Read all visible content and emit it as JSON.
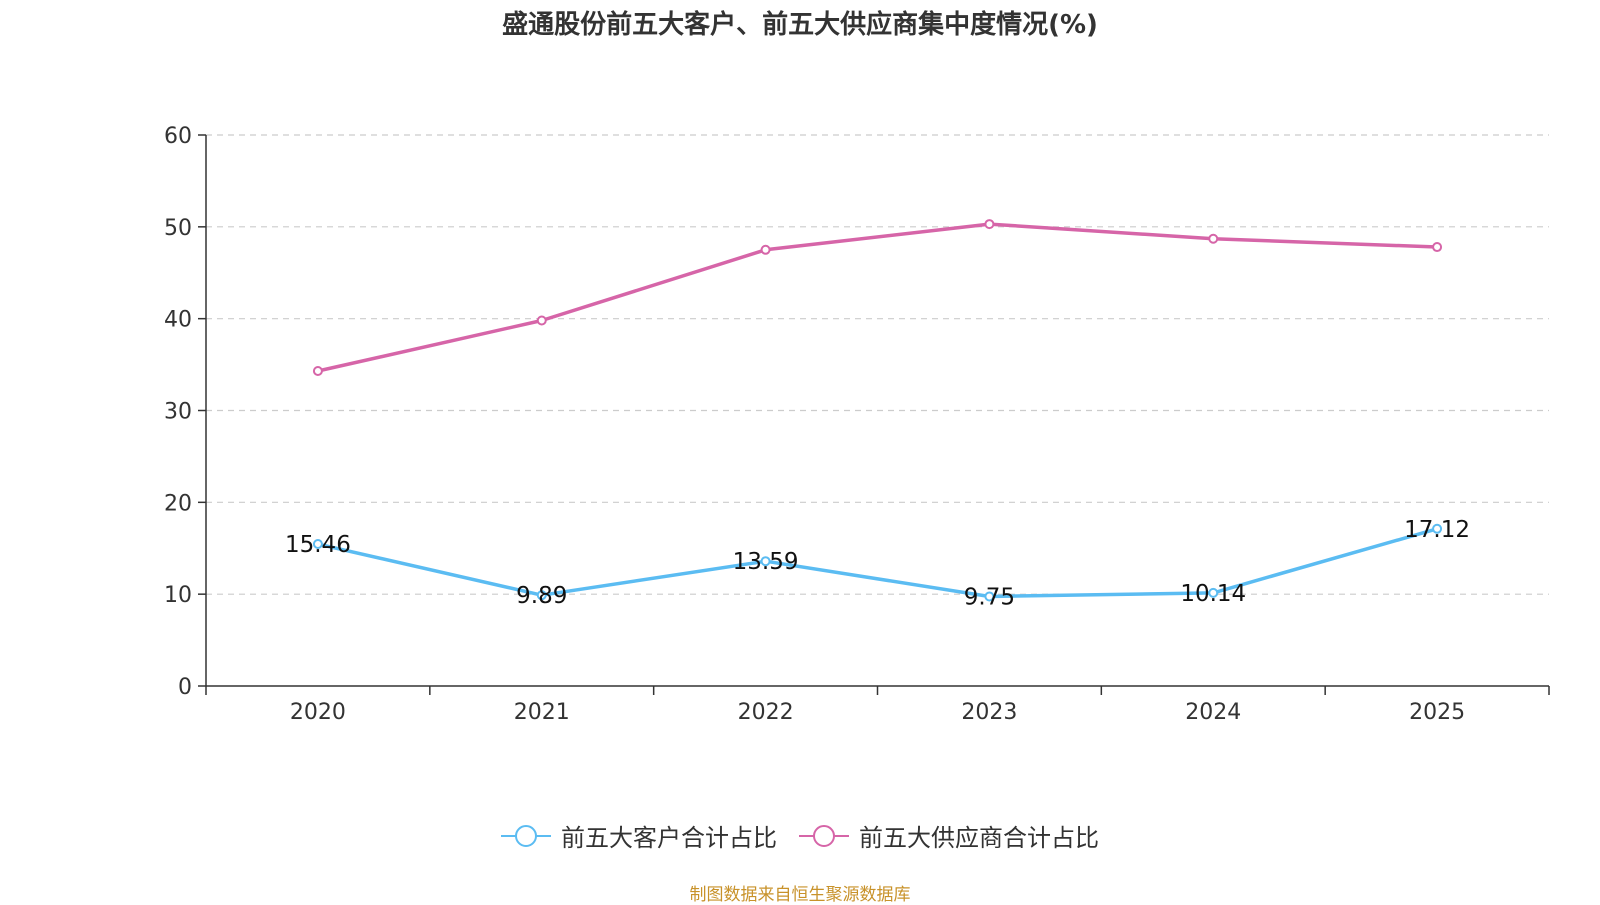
{
  "chart_data": {
    "type": "line",
    "title": "盛通股份前五大客户、前五大供应商集中度情况(%)",
    "categories": [
      "2020",
      "2021",
      "2022",
      "2023",
      "2024",
      "2025"
    ],
    "y_ticks": [
      "0",
      "10",
      "20",
      "30",
      "40",
      "50",
      "60"
    ],
    "ylim": [
      0,
      60
    ],
    "grid": true,
    "legend_position": "bottom-center",
    "series": [
      {
        "name": "前五大客户合计占比",
        "color": "#5bbcf2",
        "values": [
          15.46,
          9.89,
          13.59,
          9.75,
          10.14,
          17.12
        ],
        "labels": [
          "15.46",
          "9.89",
          "13.59",
          "9.75",
          "10.14",
          "17.12"
        ]
      },
      {
        "name": "前五大供应商合计占比",
        "color": "#d665a8",
        "values": [
          34.3,
          39.8,
          47.5,
          50.3,
          48.7,
          47.8
        ]
      }
    ]
  },
  "source_note": "制图数据来自恒生聚源数据库"
}
